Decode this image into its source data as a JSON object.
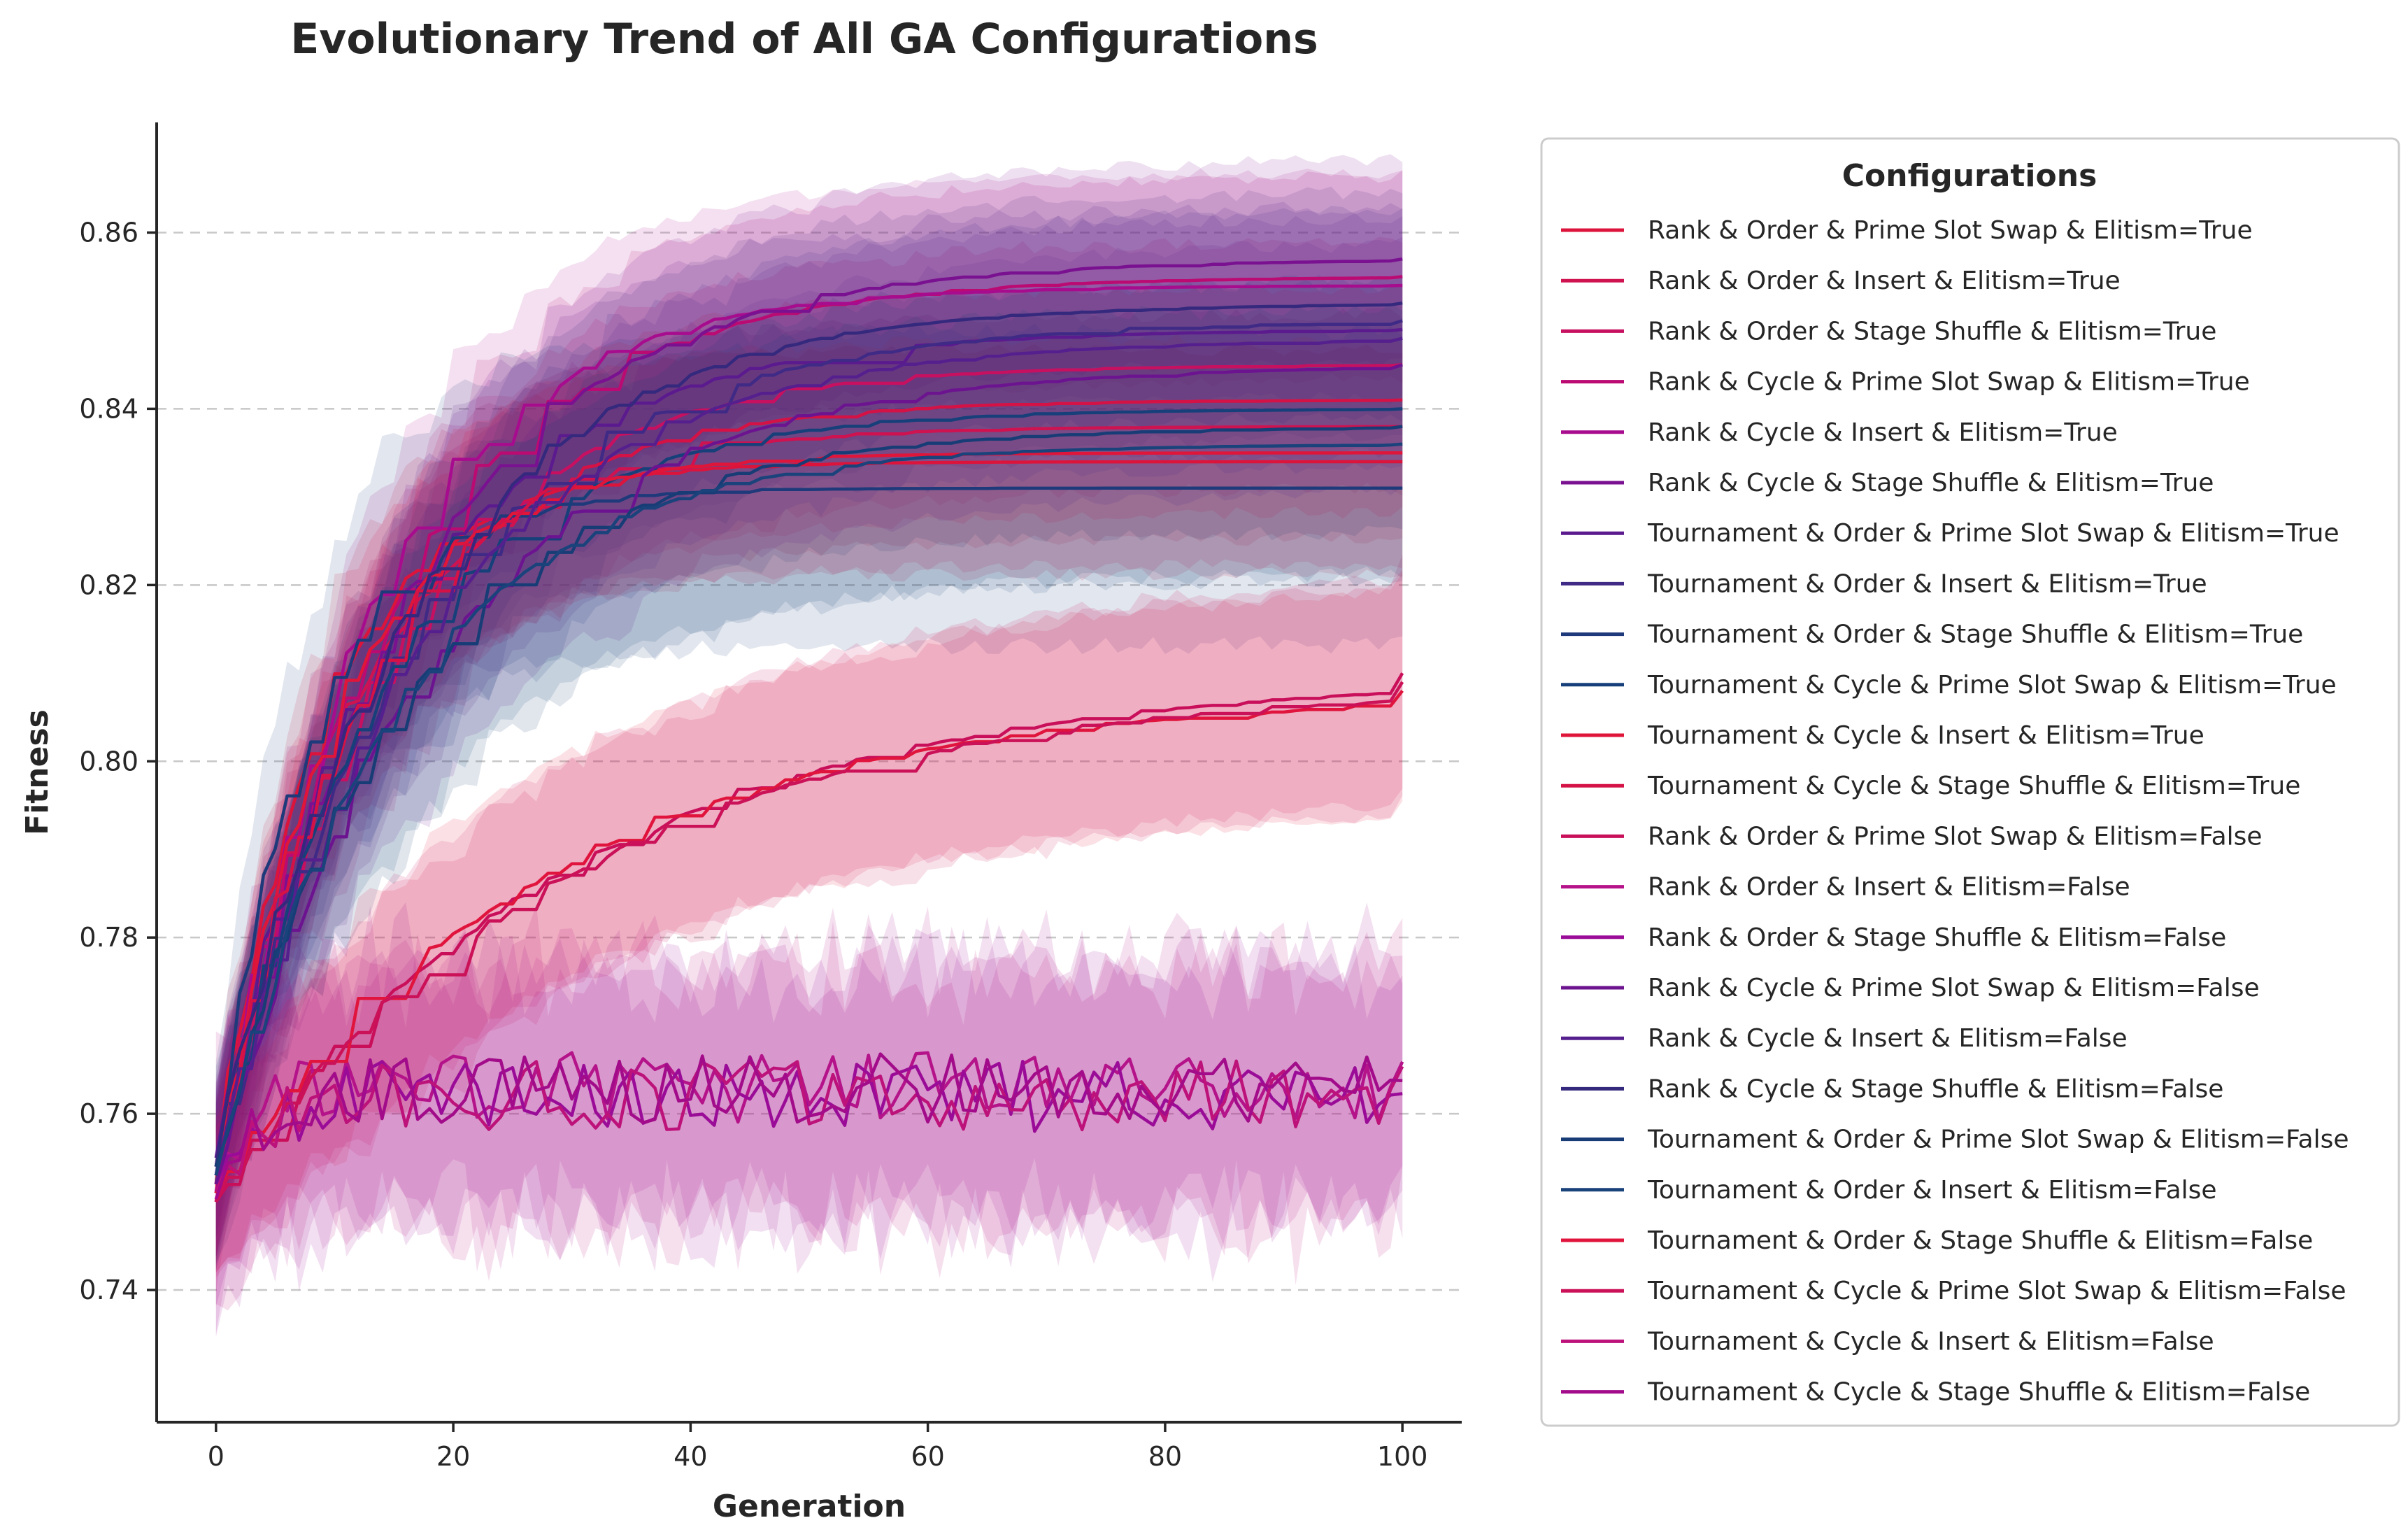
{
  "chart_data": {
    "type": "line",
    "title": "Evolutionary Trend of All GA Configurations",
    "xlabel": "Generation",
    "ylabel": "Fitness",
    "xlim": [
      -5,
      105
    ],
    "ylim": [
      0.725,
      0.8725
    ],
    "x_ticks": [
      0,
      20,
      40,
      60,
      80,
      100
    ],
    "x_tick_labels": [
      "0",
      "20",
      "40",
      "60",
      "80",
      "100"
    ],
    "y_ticks": [
      0.74,
      0.76,
      0.78,
      0.8,
      0.82,
      0.84,
      0.86
    ],
    "y_tick_labels": [
      "0.74",
      "0.76",
      "0.78",
      "0.80",
      "0.82",
      "0.84",
      "0.86"
    ],
    "grid": "horizontal dashed",
    "legend_title": "Configurations",
    "legend_position": "outside right",
    "series": [
      {
        "name": "Rank & Order & Prime Slot Swap & Elitism=True",
        "color": "#dc143c",
        "start": 0.752,
        "final": 0.834,
        "rise": 9,
        "band": 0.01,
        "noise": 0
      },
      {
        "name": "Rank & Order & Insert & Elitism=True",
        "color": "#cf1250",
        "start": 0.753,
        "final": 0.838,
        "rise": 12,
        "band": 0.01,
        "noise": 0
      },
      {
        "name": "Rank & Order & Stage Shuffle & Elitism=True",
        "color": "#c81060",
        "start": 0.75,
        "final": 0.845,
        "rise": 14,
        "band": 0.011,
        "noise": 0
      },
      {
        "name": "Rank & Cycle & Prime Slot Swap & Elitism=True",
        "color": "#bb0a72",
        "start": 0.754,
        "final": 0.855,
        "rise": 15,
        "band": 0.009,
        "noise": 0
      },
      {
        "name": "Rank & Cycle & Insert & Elitism=True",
        "color": "#a80c8e",
        "start": 0.752,
        "final": 0.854,
        "rise": 13,
        "band": 0.01,
        "noise": 0
      },
      {
        "name": "Rank & Cycle & Stage Shuffle & Elitism=True",
        "color": "#7a1190",
        "start": 0.751,
        "final": 0.857,
        "rise": 16,
        "band": 0.009,
        "noise": 0
      },
      {
        "name": "Tournament & Order & Prime Slot Swap & Elitism=True",
        "color": "#5b1a8e",
        "start": 0.755,
        "final": 0.849,
        "rise": 15,
        "band": 0.011,
        "noise": 0
      },
      {
        "name": "Tournament & Order & Insert & Elitism=True",
        "color": "#3f2a86",
        "start": 0.753,
        "final": 0.85,
        "rise": 17,
        "band": 0.01,
        "noise": 0
      },
      {
        "name": "Tournament & Order & Stage Shuffle & Elitism=True",
        "color": "#1f3a7a",
        "start": 0.754,
        "final": 0.831,
        "rise": 8,
        "band": 0.014,
        "noise": 0
      },
      {
        "name": "Tournament & Cycle & Prime Slot Swap & Elitism=True",
        "color": "#17407a",
        "start": 0.752,
        "final": 0.84,
        "rise": 14,
        "band": 0.011,
        "noise": 0
      },
      {
        "name": "Tournament & Cycle & Insert & Elitism=True",
        "color": "#e0153a",
        "start": 0.751,
        "final": 0.835,
        "rise": 10,
        "band": 0.01,
        "noise": 0
      },
      {
        "name": "Tournament & Cycle & Stage Shuffle & Elitism=True",
        "color": "#d51245",
        "start": 0.753,
        "final": 0.841,
        "rise": 13,
        "band": 0.01,
        "noise": 0
      },
      {
        "name": "Rank & Order & Prime Slot Swap & Elitism=False",
        "color": "#c90f5a",
        "start": 0.75,
        "final": 0.81,
        "rise": 30,
        "band": 0.01,
        "noise": 0
      },
      {
        "name": "Rank & Order & Insert & Elitism=False",
        "color": "#b4138a",
        "start": 0.752,
        "final": 0.763,
        "rise": 3,
        "band": 0.012,
        "noise": 0.004
      },
      {
        "name": "Rank & Order & Stage Shuffle & Elitism=False",
        "color": "#9a0c98",
        "start": 0.751,
        "final": 0.762,
        "rise": 3,
        "band": 0.012,
        "noise": 0.004
      },
      {
        "name": "Rank & Cycle & Prime Slot Swap & Elitism=False",
        "color": "#6c1490",
        "start": 0.752,
        "final": 0.845,
        "rise": 18,
        "band": 0.011,
        "noise": 0
      },
      {
        "name": "Rank & Cycle & Insert & Elitism=False",
        "color": "#55208e",
        "start": 0.753,
        "final": 0.848,
        "rise": 17,
        "band": 0.011,
        "noise": 0
      },
      {
        "name": "Rank & Cycle & Stage Shuffle & Elitism=False",
        "color": "#35297e",
        "start": 0.754,
        "final": 0.852,
        "rise": 16,
        "band": 0.01,
        "noise": 0
      },
      {
        "name": "Tournament & Order & Prime Slot Swap & Elitism=False",
        "color": "#183d76",
        "start": 0.754,
        "final": 0.838,
        "rise": 16,
        "band": 0.013,
        "noise": 0
      },
      {
        "name": "Tournament & Order & Insert & Elitism=False",
        "color": "#1a437c",
        "start": 0.753,
        "final": 0.836,
        "rise": 15,
        "band": 0.012,
        "noise": 0
      },
      {
        "name": "Tournament & Order & Stage Shuffle & Elitism=False",
        "color": "#e0143c",
        "start": 0.751,
        "final": 0.808,
        "rise": 28,
        "band": 0.01,
        "noise": 0
      },
      {
        "name": "Tournament & Cycle & Prime Slot Swap & Elitism=False",
        "color": "#cb1158",
        "start": 0.75,
        "final": 0.809,
        "rise": 30,
        "band": 0.01,
        "noise": 0
      },
      {
        "name": "Tournament & Cycle & Insert & Elitism=False",
        "color": "#bc127a",
        "start": 0.752,
        "final": 0.762,
        "rise": 3,
        "band": 0.012,
        "noise": 0.004
      },
      {
        "name": "Tournament & Cycle & Stage Shuffle & Elitism=False",
        "color": "#a20c8a",
        "start": 0.751,
        "final": 0.763,
        "rise": 3,
        "band": 0.012,
        "noise": 0.004
      }
    ]
  }
}
